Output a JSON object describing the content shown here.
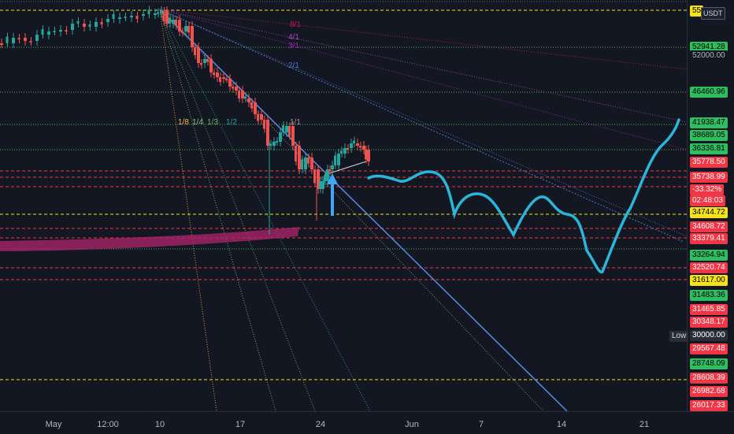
{
  "header": {
    "currency": "USDT",
    "top_price_tag": "55"
  },
  "price_scale": {
    "tags": [
      {
        "label": "52941.28",
        "bg": "#2ebd5f",
        "color": "#000000"
      },
      {
        "label": "52000.00",
        "bg": "#131722",
        "color": "#b2b5be"
      },
      {
        "label": "46460.96",
        "bg": "#2ebd5f",
        "color": "#000000"
      },
      {
        "label": "41938.47",
        "bg": "#2ebd5f",
        "color": "#000000"
      },
      {
        "label": "38689.05",
        "bg": "#2ebd5f",
        "color": "#000000"
      },
      {
        "label": "36336.81",
        "bg": "#2ebd5f",
        "color": "#000000"
      },
      {
        "label": "35778.50",
        "bg": "#f23645",
        "color": "#ffffff"
      },
      {
        "label": "35738.99",
        "bg": "#f23645",
        "color": "#ffffff"
      },
      {
        "label": "-33.32%",
        "bg": "#f23645",
        "color": "#ffffff"
      },
      {
        "label": "02:48:03",
        "bg": "#f23645",
        "color": "#ffffff"
      },
      {
        "label": "34744.72",
        "bg": "#f5e31a",
        "color": "#000000"
      },
      {
        "label": "34608.72",
        "bg": "#f23645",
        "color": "#ffffff"
      },
      {
        "label": "33379.41",
        "bg": "#f23645",
        "color": "#ffffff"
      },
      {
        "label": "33264.94",
        "bg": "#2ebd5f",
        "color": "#000000"
      },
      {
        "label": "32520.74",
        "bg": "#f23645",
        "color": "#ffffff"
      },
      {
        "label": "31617.00",
        "bg": "#f5e31a",
        "color": "#000000"
      },
      {
        "label": "31483.36",
        "bg": "#2ebd5f",
        "color": "#000000"
      },
      {
        "label": "31465.85",
        "bg": "#f23645",
        "color": "#ffffff"
      },
      {
        "label": "30348.17",
        "bg": "#f23645",
        "color": "#ffffff"
      },
      {
        "label": "30000.00",
        "bg": "#2a2e39",
        "color": "#ffffff"
      },
      {
        "label": "29567.48",
        "bg": "#f23645",
        "color": "#ffffff"
      },
      {
        "label": "28748.09",
        "bg": "#2ebd5f",
        "color": "#000000"
      },
      {
        "label": "28608.39",
        "bg": "#f23645",
        "color": "#ffffff"
      },
      {
        "label": "26982.68",
        "bg": "#f23645",
        "color": "#ffffff"
      },
      {
        "label": "26017.33",
        "bg": "#f23645",
        "color": "#ffffff"
      }
    ],
    "low_label": "Low"
  },
  "time_axis": {
    "labels": [
      "May",
      "12:00",
      "10",
      "17",
      "24",
      "Jun",
      "7",
      "14",
      "21"
    ]
  },
  "gann_fan": {
    "labels": [
      "8/1",
      "4/1",
      "3/1",
      "2/1",
      "1/1",
      "1/2",
      "1/3",
      "1/4",
      "1/8"
    ],
    "colors": {
      "8/1": "#c2185b",
      "4/1": "#ab47bc",
      "3/1": "#9c27b0",
      "2/1": "#4a78c7",
      "1/1": "#9598a1",
      "1/2": "#26a69a",
      "1/3": "#66bb6a",
      "1/4": "#81c784",
      "1/8": "#ffb74d"
    }
  },
  "colors": {
    "background": "#131722",
    "bull": "#26a69a",
    "bear": "#ef5350",
    "projection": "#29b6d8",
    "zone": "#b0266e",
    "arrow": "#42a5f5"
  }
}
